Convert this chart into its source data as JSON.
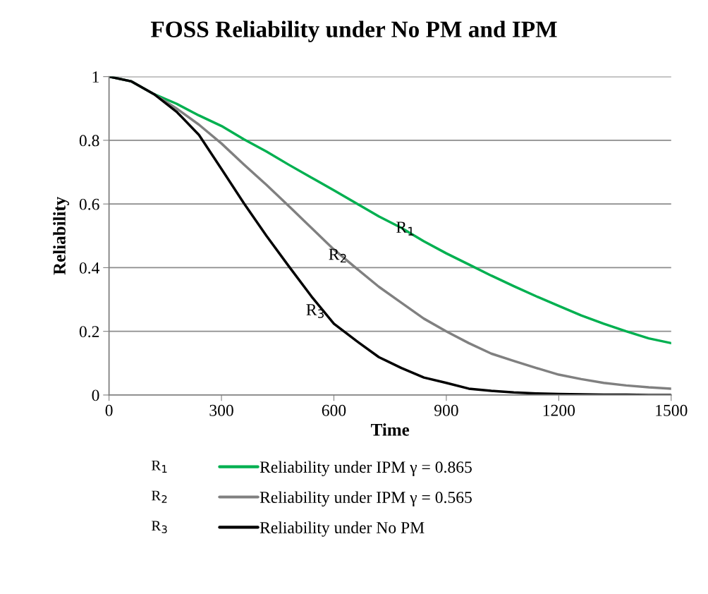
{
  "chart_data": {
    "type": "line",
    "title": "FOSS Reliability under No PM and IPM",
    "xlabel": "Time",
    "ylabel": "Reliability",
    "x": [
      0,
      60,
      120,
      180,
      240,
      300,
      360,
      420,
      480,
      540,
      600,
      660,
      720,
      780,
      840,
      900,
      960,
      1020,
      1080,
      1140,
      1200,
      1260,
      1320,
      1380,
      1440,
      1500
    ],
    "series": [
      {
        "name": "Reliability under IPM γ = 0.865",
        "color": "#00b050",
        "values": [
          1,
          0.985,
          0.945,
          0.915,
          0.878,
          0.845,
          0.803,
          0.765,
          0.723,
          0.683,
          0.643,
          0.602,
          0.561,
          0.525,
          0.483,
          0.445,
          0.41,
          0.375,
          0.342,
          0.31,
          0.28,
          0.25,
          0.224,
          0.2,
          0.178,
          0.163
        ]
      },
      {
        "name": "Reliability under IPM γ = 0.565",
        "color": "#808080",
        "values": [
          1,
          0.985,
          0.945,
          0.9,
          0.849,
          0.79,
          0.724,
          0.66,
          0.593,
          0.525,
          0.457,
          0.398,
          0.34,
          0.29,
          0.24,
          0.2,
          0.163,
          0.13,
          0.107,
          0.085,
          0.064,
          0.05,
          0.038,
          0.03,
          0.024,
          0.02
        ]
      },
      {
        "name": "Reliability under No PM",
        "color": "#000000",
        "values": [
          1,
          0.985,
          0.945,
          0.89,
          0.817,
          0.71,
          0.602,
          0.5,
          0.404,
          0.31,
          0.224,
          0.17,
          0.119,
          0.085,
          0.055,
          0.038,
          0.02,
          0.013,
          0.008,
          0.005,
          0.003,
          0.002,
          0.001,
          0.001,
          0,
          0
        ]
      }
    ],
    "xlim": [
      0,
      1500
    ],
    "xticks": [
      0,
      300,
      600,
      900,
      1200,
      1500
    ],
    "ylim": [
      0,
      1
    ],
    "yticks": [
      0,
      0.2,
      0.4,
      0.6,
      0.8,
      1
    ],
    "grid": "y",
    "legend": "bottom",
    "marker": "none",
    "line_style": "solid",
    "annotations": [
      {
        "text": "R$_{1}$",
        "x": 840,
        "y": 0.483
      },
      {
        "text": "R$_{2}$",
        "x": 660,
        "y": 0.398
      },
      {
        "text": "R$_{3}$",
        "x": 600,
        "y": 0.224
      },
      "R$_{1}$",
      "R$_{2}$",
      "R$_{3}$"
    ]
  }
}
